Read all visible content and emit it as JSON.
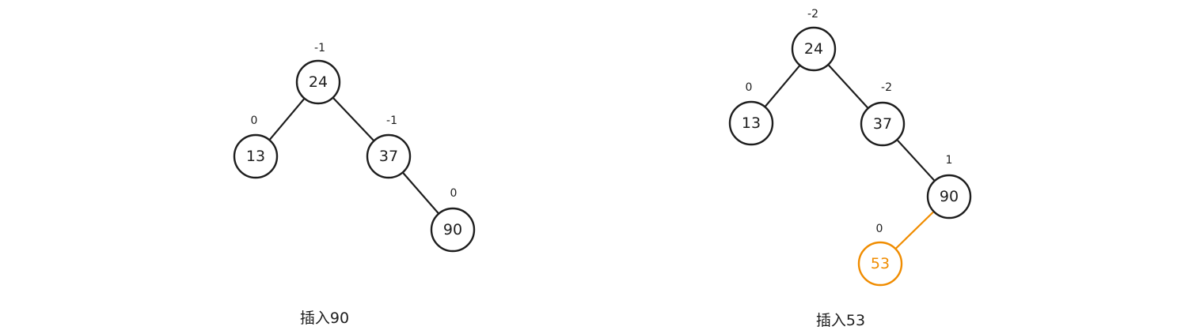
{
  "diagrams": [
    {
      "caption": "插入90",
      "nodes": [
        {
          "id": "n24",
          "label": "24",
          "balance": "-1",
          "highlight": false
        },
        {
          "id": "n13",
          "label": "13",
          "balance": "0",
          "highlight": false
        },
        {
          "id": "n37",
          "label": "37",
          "balance": "-1",
          "highlight": false
        },
        {
          "id": "n90",
          "label": "90",
          "balance": "0",
          "highlight": false
        }
      ],
      "edges": [
        {
          "from": "n24",
          "to": "n13",
          "highlight": false
        },
        {
          "from": "n24",
          "to": "n37",
          "highlight": false
        },
        {
          "from": "n37",
          "to": "n90",
          "highlight": false
        }
      ]
    },
    {
      "caption": "插入53",
      "nodes": [
        {
          "id": "n24",
          "label": "24",
          "balance": "-2",
          "highlight": false
        },
        {
          "id": "n13",
          "label": "13",
          "balance": "0",
          "highlight": false
        },
        {
          "id": "n37",
          "label": "37",
          "balance": "-2",
          "highlight": false
        },
        {
          "id": "n90",
          "label": "90",
          "balance": "1",
          "highlight": false
        },
        {
          "id": "n53",
          "label": "53",
          "balance": "0",
          "highlight": true
        }
      ],
      "edges": [
        {
          "from": "n24",
          "to": "n13",
          "highlight": false
        },
        {
          "from": "n24",
          "to": "n37",
          "highlight": false
        },
        {
          "from": "n37",
          "to": "n90",
          "highlight": false
        },
        {
          "from": "n90",
          "to": "n53",
          "highlight": true
        }
      ]
    }
  ],
  "colors": {
    "stroke": "#1e1e1e",
    "highlight": "#f08c00"
  }
}
